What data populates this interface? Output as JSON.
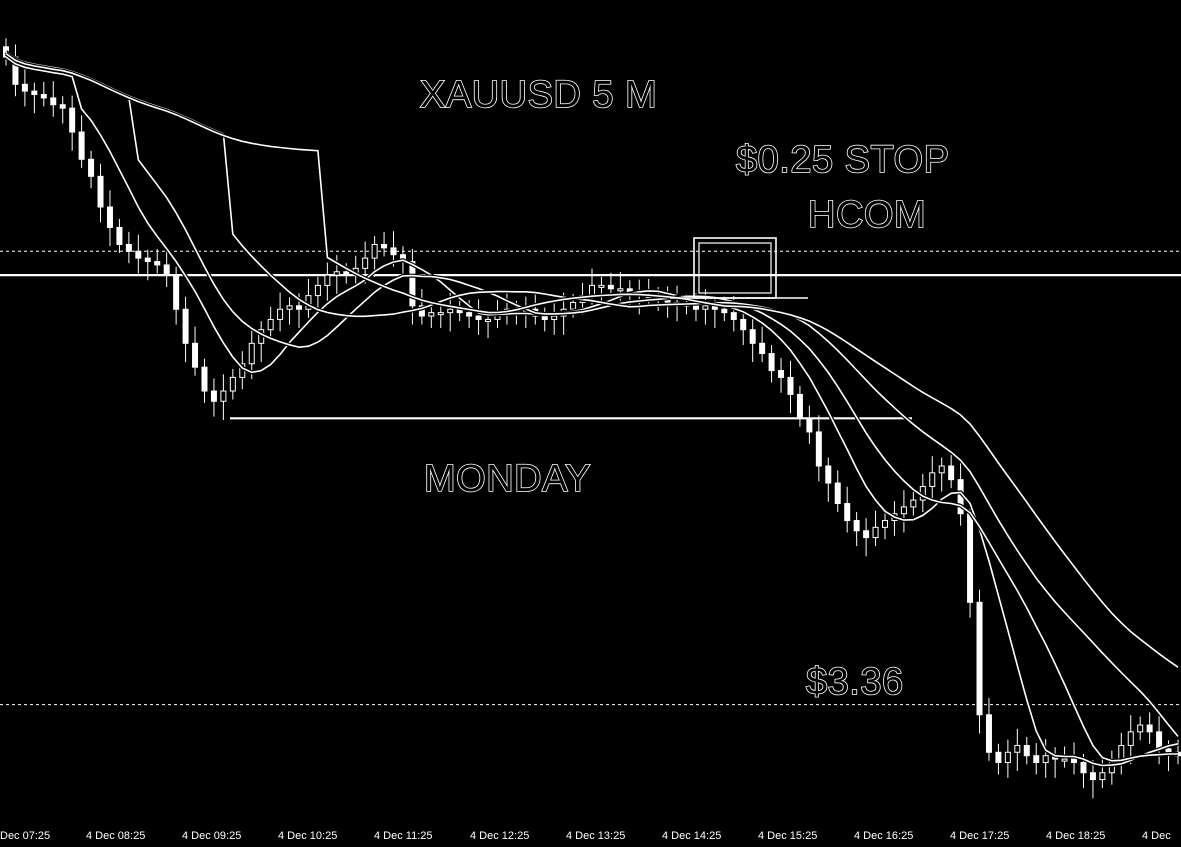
{
  "chart_data": {
    "type": "candlestick",
    "title": "XAUUSD 5 M",
    "annotations": {
      "stop": "$0.25 STOP",
      "hcom": "HCOM",
      "day": "MONDAY",
      "target": "$3.36"
    },
    "x_tick_labels": [
      "Dec 07:25",
      "4 Dec 08:25",
      "4 Dec 09:25",
      "4 Dec 10:25",
      "4 Dec 11:25",
      "4 Dec 12:25",
      "4 Dec 13:25",
      "4 Dec 14:25",
      "4 Dec 15:25",
      "4 Dec 16:25",
      "4 Dec 17:25",
      "4 Dec 18:25",
      "4 Dec"
    ],
    "grid": false,
    "series_close": [
      1002.0,
      1001.2,
      1001.0,
      1000.9,
      1000.8,
      1000.6,
      1000.5,
      999.8,
      999.0,
      998.5,
      997.6,
      997.0,
      996.5,
      996.3,
      996.1,
      996.0,
      995.9,
      995.6,
      994.6,
      993.6,
      992.9,
      992.2,
      991.9,
      992.2,
      992.6,
      993.0,
      993.6,
      994.0,
      994.3,
      994.6,
      994.7,
      994.6,
      995.0,
      995.3,
      995.6,
      995.7,
      995.6,
      995.8,
      996.1,
      996.5,
      996.4,
      996.2,
      996.0,
      994.7,
      994.4,
      994.5,
      994.5,
      994.6,
      994.5,
      994.4,
      994.3,
      994.3,
      994.5,
      994.6,
      994.6,
      994.6,
      994.4,
      994.3,
      994.4,
      994.6,
      994.8,
      995.0,
      995.3,
      995.3,
      995.2,
      995.2,
      995.1,
      995.0,
      995.0,
      994.9,
      994.8,
      994.8,
      994.7,
      994.6,
      994.7,
      994.6,
      994.5,
      994.3,
      994.0,
      993.6,
      993.3,
      992.8,
      992.6,
      992.1,
      991.4,
      991.0,
      990.0,
      989.5,
      988.9,
      988.4,
      988.1,
      987.9,
      988.2,
      988.4,
      988.6,
      988.8,
      989.0,
      989.4,
      989.8,
      990.0,
      989.6,
      988.6,
      986.0,
      982.7,
      981.6,
      981.3,
      981.6,
      981.8,
      981.5,
      981.3,
      981.5,
      981.4,
      981.4,
      981.3,
      981.0,
      980.8,
      981.0,
      981.4,
      981.8,
      982.2,
      982.4,
      982.2,
      981.7,
      981.6,
      981.5
    ],
    "horizontal_levels": [
      {
        "style": "dotted",
        "value": 996.3
      },
      {
        "style": "solid",
        "value": 995.6
      },
      {
        "style": "solid",
        "value": 991.4
      },
      {
        "style": "dotted",
        "value": 983.0
      }
    ],
    "moving_averages": [
      "ma-fast",
      "ma-medium",
      "ma-slow",
      "ma-slowest"
    ]
  }
}
